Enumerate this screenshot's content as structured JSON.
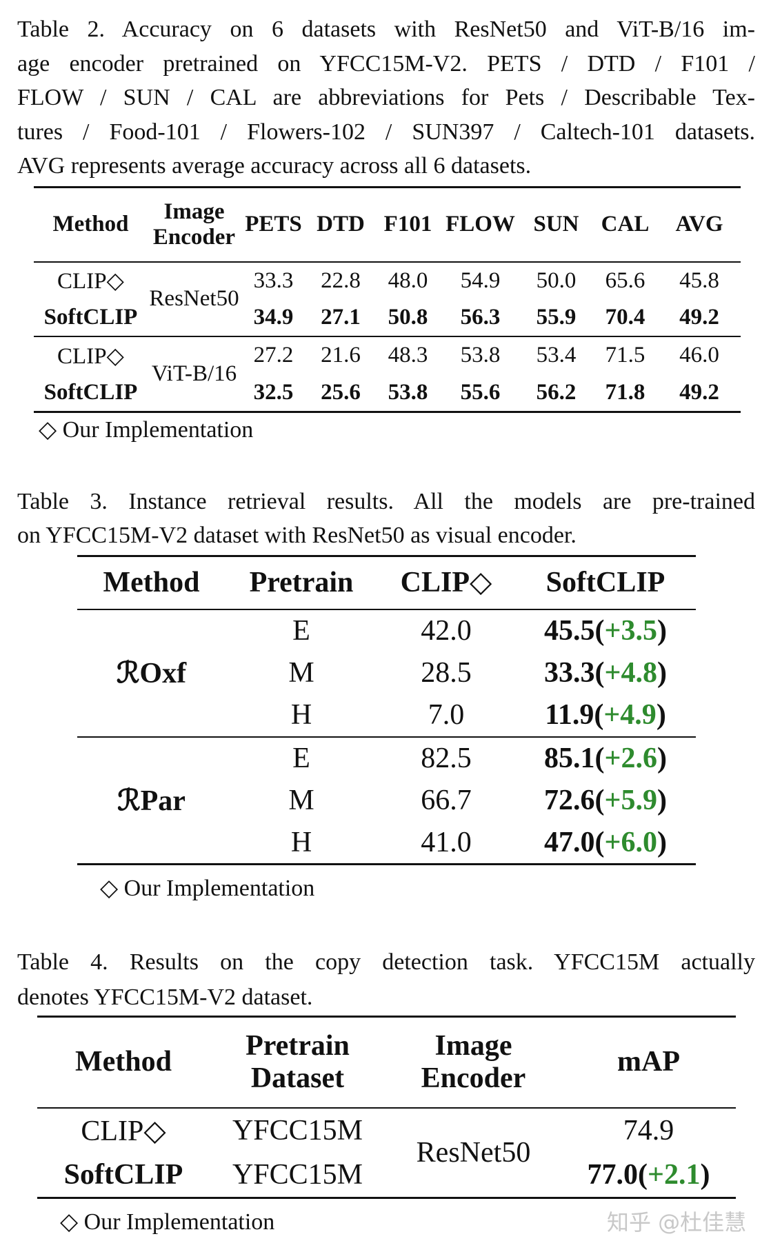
{
  "table2": {
    "caption": [
      "Table 2. Accuracy on 6 datasets with ResNet50 and ViT-B/16 im-",
      "age encoder pretrained on YFCC15M-V2. PETS / DTD / F101 /",
      "FLOW / SUN / CAL are abbreviations for Pets / Describable Tex-",
      "tures / Food-101 / Flowers-102 / SUN397 / Caltech-101 datasets.",
      "AVG represents average accuracy across all 6 datasets."
    ],
    "columns": [
      "Method",
      "Image Encoder",
      "PETS",
      "DTD",
      "F101",
      "FLOW",
      "SUN",
      "CAL",
      "AVG"
    ],
    "groups": [
      {
        "encoder": "ResNet50",
        "rows": [
          {
            "method": "CLIP◇",
            "values": [
              "33.3",
              "22.8",
              "48.0",
              "54.9",
              "50.0",
              "65.6",
              "45.8"
            ]
          },
          {
            "method": "SoftCLIP",
            "values": [
              "34.9",
              "27.1",
              "50.8",
              "56.3",
              "55.9",
              "70.4",
              "49.2"
            ]
          }
        ]
      },
      {
        "encoder": "ViT-B/16",
        "rows": [
          {
            "method": "CLIP◇",
            "values": [
              "27.2",
              "21.6",
              "48.3",
              "53.8",
              "53.4",
              "71.5",
              "46.0"
            ]
          },
          {
            "method": "SoftCLIP",
            "values": [
              "32.5",
              "25.6",
              "53.8",
              "55.6",
              "56.2",
              "71.8",
              "49.2"
            ]
          }
        ]
      }
    ],
    "footnote": "◇ Our Implementation"
  },
  "table3": {
    "caption": [
      "Table 3. Instance retrieval results. All the models are pre-trained",
      "on YFCC15M-V2 dataset with ResNet50 as visual encoder."
    ],
    "columns": [
      "Method",
      "Pretrain",
      "CLIP◇",
      "SoftCLIP"
    ],
    "groups": [
      {
        "method": "ℛOxf",
        "rows": [
          {
            "pretrain": "E",
            "clip": "42.0",
            "softclip": [
              "45.5",
              "(",
              "+3.5",
              ")"
            ]
          },
          {
            "pretrain": "M",
            "clip": "28.5",
            "softclip": [
              "33.3",
              "(",
              "+4.8",
              ")"
            ]
          },
          {
            "pretrain": "H",
            "clip": "7.0",
            "softclip": [
              "11.9",
              "(",
              "+4.9",
              ")"
            ]
          }
        ]
      },
      {
        "method": "ℛPar",
        "rows": [
          {
            "pretrain": "E",
            "clip": "82.5",
            "softclip": [
              "85.1",
              "(",
              "+2.6",
              ")"
            ]
          },
          {
            "pretrain": "M",
            "clip": "66.7",
            "softclip": [
              "72.6",
              "(",
              "+5.9",
              ")"
            ]
          },
          {
            "pretrain": "H",
            "clip": "41.0",
            "softclip": [
              "47.0",
              "(",
              "+6.0",
              ")"
            ]
          }
        ]
      }
    ],
    "footnote": "◇ Our Implementation"
  },
  "table4": {
    "caption": [
      "Table 4. Results on the copy detection task. YFCC15M actually",
      "denotes YFCC15M-V2 dataset."
    ],
    "columns": [
      "Method",
      "Pretrain Dataset",
      "Image Encoder",
      "mAP"
    ],
    "encoder": "ResNet50",
    "rows": [
      {
        "method": "CLIP◇",
        "dataset": "YFCC15M",
        "map": [
          "74.9"
        ]
      },
      {
        "method": "SoftCLIP",
        "dataset": "YFCC15M",
        "map": [
          "77.0",
          "(",
          "+2.1",
          ")"
        ]
      }
    ],
    "footnote": "◇ Our Implementation"
  },
  "watermark": "知乎 @杜佳慧"
}
